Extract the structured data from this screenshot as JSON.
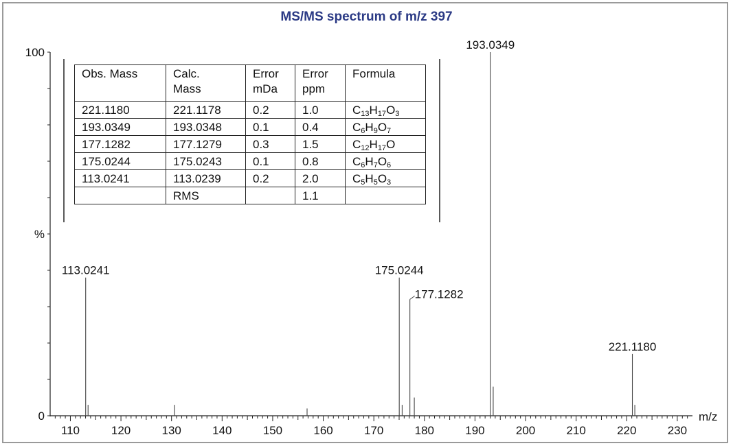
{
  "chart_data": {
    "type": "bar",
    "title": "MS/MS spectrum of m/z 397",
    "xlabel": "m/z",
    "ylabel": "%",
    "xlim": [
      106,
      233
    ],
    "ylim": [
      0,
      100
    ],
    "x_ticks": [
      110,
      120,
      130,
      140,
      150,
      160,
      170,
      180,
      190,
      200,
      210,
      220,
      230
    ],
    "y_ticks": [
      {
        "value": 0,
        "label": "0"
      },
      {
        "value": 50,
        "label": "%"
      },
      {
        "value": 100,
        "label": "100"
      }
    ],
    "peaks": [
      {
        "mz": 113.0241,
        "intensity": 38,
        "label": "113.0241"
      },
      {
        "mz": 113.5,
        "intensity": 3
      },
      {
        "mz": 130.6,
        "intensity": 3
      },
      {
        "mz": 156.8,
        "intensity": 2
      },
      {
        "mz": 175.0244,
        "intensity": 38,
        "label": "175.0244"
      },
      {
        "mz": 175.6,
        "intensity": 3
      },
      {
        "mz": 177.1282,
        "intensity": 32,
        "label": "177.1282"
      },
      {
        "mz": 178.0,
        "intensity": 5
      },
      {
        "mz": 193.0349,
        "intensity": 100,
        "label": "193.0349"
      },
      {
        "mz": 193.6,
        "intensity": 8
      },
      {
        "mz": 221.118,
        "intensity": 17,
        "label": "221.1180"
      },
      {
        "mz": 221.6,
        "intensity": 3
      }
    ]
  },
  "table": {
    "headers": [
      [
        "Obs. Mass"
      ],
      [
        "Calc.",
        "Mass"
      ],
      [
        "Error",
        "mDa"
      ],
      [
        "Error",
        "ppm"
      ],
      [
        "Formula"
      ]
    ],
    "rows": [
      {
        "obs": "221.1180",
        "calc": "221.1178",
        "mda": "0.2",
        "ppm": "1.0",
        "formula": [
          [
            "C",
            "13"
          ],
          [
            "H",
            "17"
          ],
          [
            "O",
            "3"
          ]
        ]
      },
      {
        "obs": "193.0349",
        "calc": "193.0348",
        "mda": "0.1",
        "ppm": "0.4",
        "formula": [
          [
            "C",
            "6"
          ],
          [
            "H",
            "9"
          ],
          [
            "O",
            "7"
          ]
        ]
      },
      {
        "obs": "177.1282",
        "calc": "177.1279",
        "mda": "0.3",
        "ppm": "1.5",
        "formula": [
          [
            "C",
            "12"
          ],
          [
            "H",
            "17"
          ],
          [
            "O",
            ""
          ]
        ]
      },
      {
        "obs": "175.0244",
        "calc": "175.0243",
        "mda": "0.1",
        "ppm": "0.8",
        "formula": [
          [
            "C",
            "6"
          ],
          [
            "H",
            "7"
          ],
          [
            "O",
            "6"
          ]
        ]
      },
      {
        "obs": "113.0241",
        "calc": "113.0239",
        "mda": "0.2",
        "ppm": "2.0",
        "formula": [
          [
            "C",
            "5"
          ],
          [
            "H",
            "5"
          ],
          [
            "O",
            "3"
          ]
        ]
      },
      {
        "obs": "",
        "calc": "RMS",
        "mda": "",
        "ppm": "1.1",
        "formula": []
      }
    ]
  }
}
